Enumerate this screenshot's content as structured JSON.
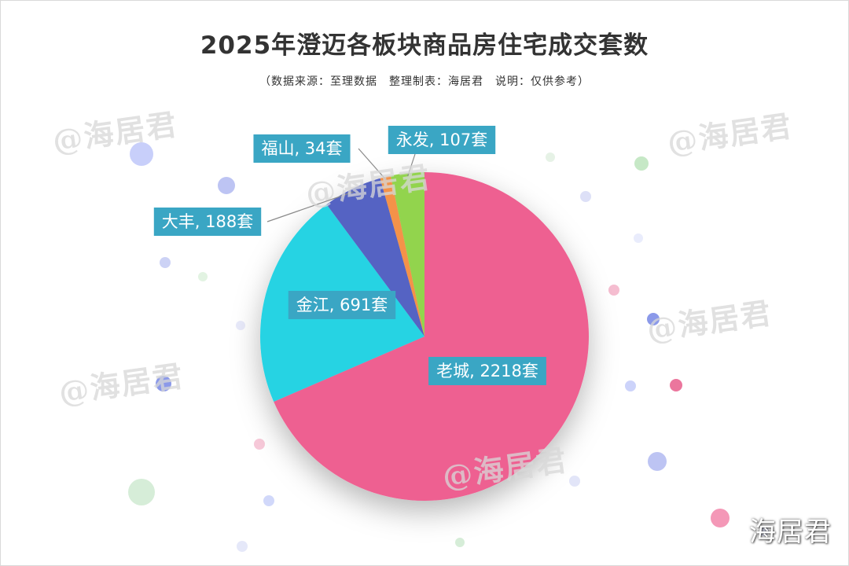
{
  "title": "2025年澄迈各板块商品房住宅成交套数",
  "subtitle": "（数据来源：至理数据　整理制表：海居君　说明：仅供参考）",
  "watermark_text": "@海居君",
  "brand_text": "海居君",
  "label_bg_color": "#3aa6c4",
  "chart_data": {
    "type": "pie",
    "title": "2025年澄迈各板块商品房住宅成交套数",
    "unit": "套",
    "start": "12 o'clock, clockwise",
    "slices": [
      {
        "name": "老城",
        "value": 2218,
        "label": "老城, 2218套",
        "color": "#ee6191"
      },
      {
        "name": "金江",
        "value": 691,
        "label": "金江, 691套",
        "color": "#26d3e3"
      },
      {
        "name": "大丰",
        "value": 188,
        "label": "大丰, 188套",
        "color": "#5564c3"
      },
      {
        "name": "福山",
        "value": 34,
        "label": "福山, 34套",
        "color": "#f4924a"
      },
      {
        "name": "永发",
        "value": 107,
        "label": "永发, 107套",
        "color": "#92d44e"
      }
    ]
  }
}
